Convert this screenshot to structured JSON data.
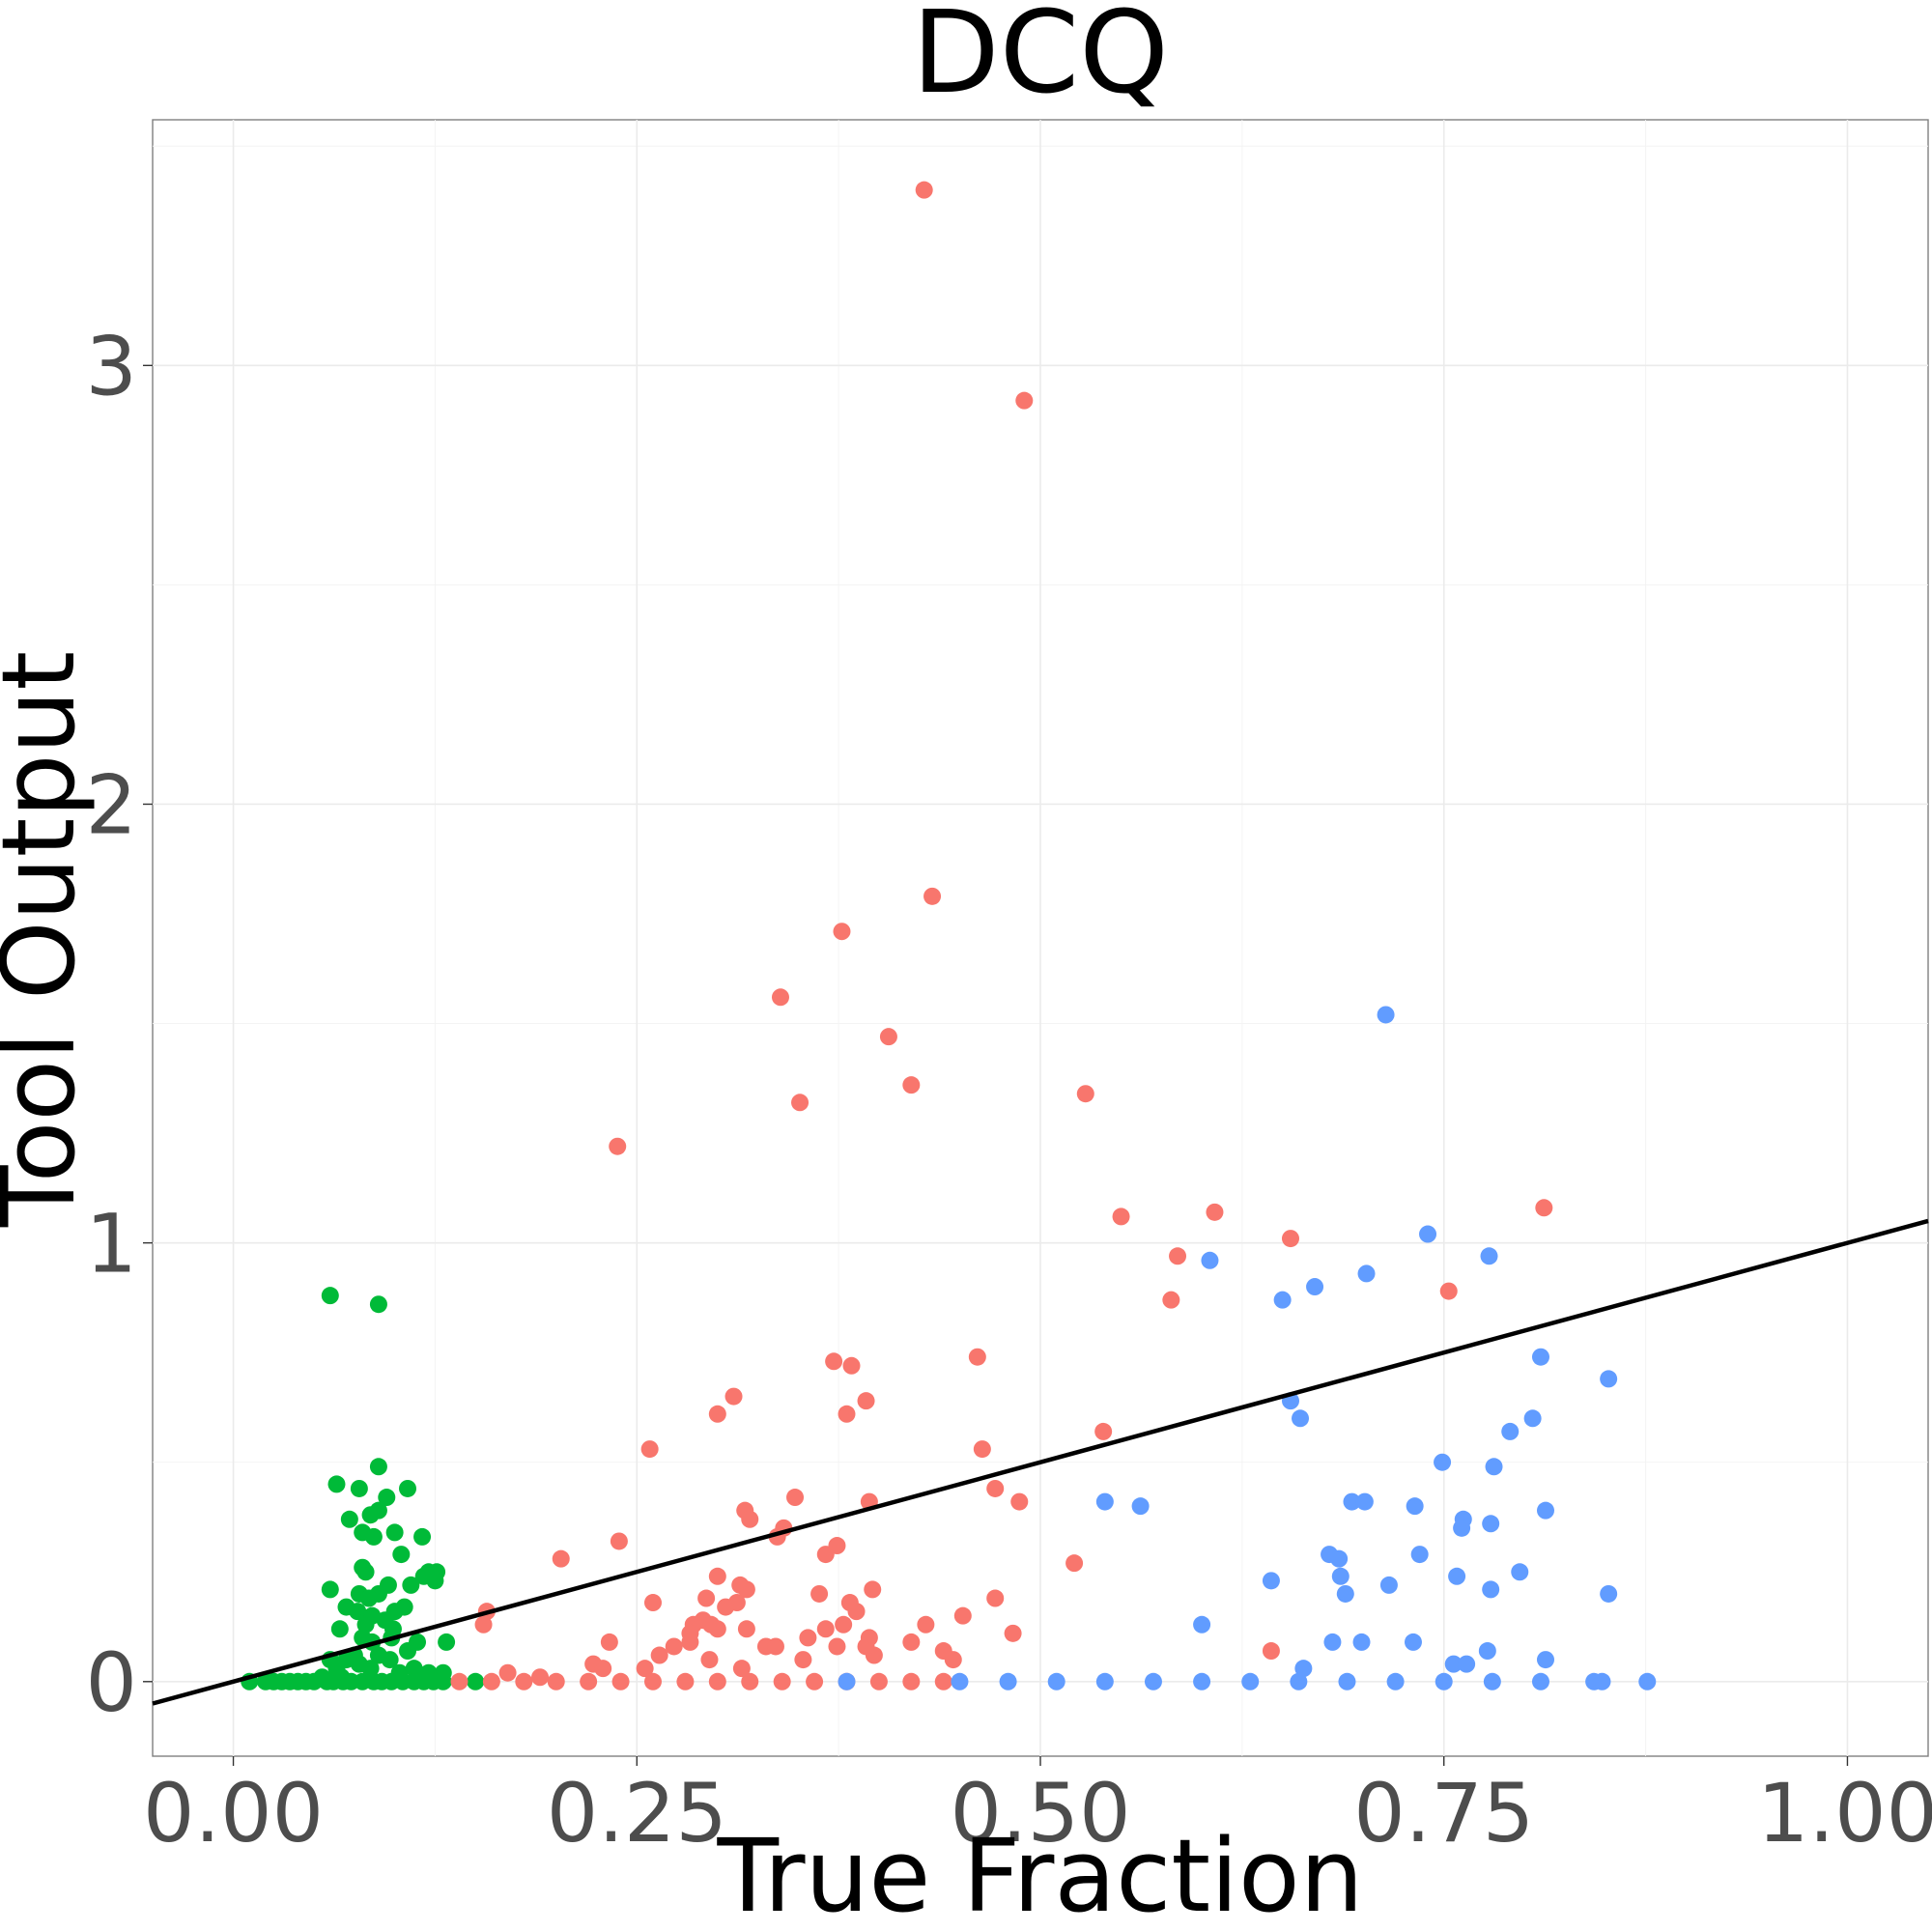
{
  "chart_data": {
    "type": "scatter",
    "title": "DCQ",
    "xlabel": "True Fraction",
    "ylabel": "Tool Output",
    "xlim": [
      -0.05,
      1.05
    ],
    "ylim": [
      -0.17,
      3.56
    ],
    "xticks": [
      0,
      0.25,
      0.5,
      0.75,
      1
    ],
    "xtick_labels": [
      "0.00",
      "0.25",
      "0.50",
      "0.75",
      "1.00"
    ],
    "yticks": [
      0,
      1,
      2,
      3
    ],
    "ytick_labels": [
      "0",
      "1",
      "2",
      "3"
    ],
    "grid": true,
    "legend": "none",
    "reference_line": {
      "type": "identity",
      "slope": 1,
      "intercept": 0,
      "color": "#000000"
    },
    "colors": {
      "green": "#00BA38",
      "red": "#F8766D",
      "blue": "#619CFF",
      "line": "#000000"
    },
    "series": [
      {
        "color": "#00BA38",
        "points": [
          [
            0.06,
            0.88
          ],
          [
            0.09,
            0.86
          ],
          [
            0.064,
            0.45
          ],
          [
            0.09,
            0.49
          ],
          [
            0.108,
            0.44
          ],
          [
            0.078,
            0.44
          ],
          [
            0.095,
            0.42
          ],
          [
            0.072,
            0.37
          ],
          [
            0.085,
            0.38
          ],
          [
            0.09,
            0.39
          ],
          [
            0.1,
            0.34
          ],
          [
            0.117,
            0.33
          ],
          [
            0.08,
            0.34
          ],
          [
            0.087,
            0.33
          ],
          [
            0.104,
            0.29
          ],
          [
            0.06,
            0.21
          ],
          [
            0.082,
            0.25
          ],
          [
            0.08,
            0.26
          ],
          [
            0.121,
            0.25
          ],
          [
            0.126,
            0.25
          ],
          [
            0.125,
            0.23
          ],
          [
            0.118,
            0.24
          ],
          [
            0.11,
            0.22
          ],
          [
            0.096,
            0.22
          ],
          [
            0.09,
            0.2
          ],
          [
            0.078,
            0.2
          ],
          [
            0.084,
            0.19
          ],
          [
            0.07,
            0.17
          ],
          [
            0.077,
            0.16
          ],
          [
            0.086,
            0.15
          ],
          [
            0.1,
            0.16
          ],
          [
            0.106,
            0.17
          ],
          [
            0.094,
            0.14
          ],
          [
            0.082,
            0.13
          ],
          [
            0.066,
            0.12
          ],
          [
            0.099,
            0.12
          ],
          [
            0.098,
            0.1
          ],
          [
            0.08,
            0.1
          ],
          [
            0.114,
            0.09
          ],
          [
            0.132,
            0.09
          ],
          [
            0.086,
            0.09
          ],
          [
            0.075,
            0.06
          ],
          [
            0.06,
            0.05
          ],
          [
            0.09,
            0.06
          ],
          [
            0.108,
            0.07
          ],
          [
            0.07,
            0.05
          ],
          [
            0.064,
            0.03
          ],
          [
            0.097,
            0.05
          ],
          [
            0.085,
            0.03
          ],
          [
            0.078,
            0.04
          ],
          [
            0.112,
            0.03
          ],
          [
            0.121,
            0.02
          ],
          [
            0.13,
            0.02
          ],
          [
            0.103,
            0.02
          ],
          [
            0.055,
            0.01
          ],
          [
            0.067,
            0.01
          ],
          [
            0.073,
            0.0
          ],
          [
            0.01,
            0.0
          ],
          [
            0.02,
            0.0
          ],
          [
            0.025,
            0.0
          ],
          [
            0.03,
            0.0
          ],
          [
            0.035,
            0.0
          ],
          [
            0.04,
            0.0
          ],
          [
            0.045,
            0.0
          ],
          [
            0.05,
            0.0
          ],
          [
            0.058,
            0.0
          ],
          [
            0.062,
            0.0
          ],
          [
            0.068,
            0.0
          ],
          [
            0.08,
            0.0
          ],
          [
            0.087,
            0.0
          ],
          [
            0.092,
            0.0
          ],
          [
            0.098,
            0.0
          ],
          [
            0.105,
            0.0
          ],
          [
            0.112,
            0.0
          ],
          [
            0.118,
            0.0
          ],
          [
            0.124,
            0.0
          ],
          [
            0.13,
            0.0
          ],
          [
            0.15,
            0.0
          ]
        ]
      },
      {
        "color": "#F8766D",
        "points": [
          [
            0.428,
            3.4
          ],
          [
            0.49,
            2.92
          ],
          [
            0.433,
            1.79
          ],
          [
            0.377,
            1.71
          ],
          [
            0.339,
            1.56
          ],
          [
            0.406,
            1.47
          ],
          [
            0.42,
            1.36
          ],
          [
            0.351,
            1.32
          ],
          [
            0.528,
            1.34
          ],
          [
            0.238,
            1.22
          ],
          [
            0.55,
            1.06
          ],
          [
            0.608,
            1.07
          ],
          [
            0.812,
            1.08
          ],
          [
            0.655,
            1.01
          ],
          [
            0.585,
            0.97
          ],
          [
            0.581,
            0.87
          ],
          [
            0.753,
            0.89
          ],
          [
            0.461,
            0.74
          ],
          [
            0.372,
            0.73
          ],
          [
            0.383,
            0.72
          ],
          [
            0.31,
            0.65
          ],
          [
            0.392,
            0.64
          ],
          [
            0.3,
            0.61
          ],
          [
            0.38,
            0.61
          ],
          [
            0.539,
            0.57
          ],
          [
            0.258,
            0.53
          ],
          [
            0.464,
            0.53
          ],
          [
            0.472,
            0.44
          ],
          [
            0.348,
            0.42
          ],
          [
            0.394,
            0.41
          ],
          [
            0.487,
            0.41
          ],
          [
            0.317,
            0.39
          ],
          [
            0.32,
            0.37
          ],
          [
            0.341,
            0.35
          ],
          [
            0.337,
            0.33
          ],
          [
            0.374,
            0.31
          ],
          [
            0.239,
            0.32
          ],
          [
            0.367,
            0.29
          ],
          [
            0.203,
            0.28
          ],
          [
            0.521,
            0.27
          ],
          [
            0.3,
            0.24
          ],
          [
            0.314,
            0.22
          ],
          [
            0.318,
            0.21
          ],
          [
            0.396,
            0.21
          ],
          [
            0.363,
            0.2
          ],
          [
            0.293,
            0.19
          ],
          [
            0.472,
            0.19
          ],
          [
            0.26,
            0.18
          ],
          [
            0.312,
            0.18
          ],
          [
            0.305,
            0.17
          ],
          [
            0.382,
            0.18
          ],
          [
            0.386,
            0.16
          ],
          [
            0.157,
            0.16
          ],
          [
            0.155,
            0.13
          ],
          [
            0.285,
            0.13
          ],
          [
            0.291,
            0.14
          ],
          [
            0.296,
            0.13
          ],
          [
            0.3,
            0.12
          ],
          [
            0.318,
            0.12
          ],
          [
            0.367,
            0.12
          ],
          [
            0.378,
            0.13
          ],
          [
            0.429,
            0.13
          ],
          [
            0.452,
            0.15
          ],
          [
            0.483,
            0.11
          ],
          [
            0.283,
            0.11
          ],
          [
            0.356,
            0.1
          ],
          [
            0.233,
            0.09
          ],
          [
            0.283,
            0.09
          ],
          [
            0.394,
            0.1
          ],
          [
            0.42,
            0.09
          ],
          [
            0.273,
            0.08
          ],
          [
            0.33,
            0.08
          ],
          [
            0.336,
            0.08
          ],
          [
            0.374,
            0.08
          ],
          [
            0.392,
            0.08
          ],
          [
            0.44,
            0.07
          ],
          [
            0.264,
            0.06
          ],
          [
            0.295,
            0.05
          ],
          [
            0.353,
            0.05
          ],
          [
            0.397,
            0.06
          ],
          [
            0.446,
            0.05
          ],
          [
            0.643,
            0.07
          ],
          [
            0.223,
            0.04
          ],
          [
            0.229,
            0.03
          ],
          [
            0.255,
            0.03
          ],
          [
            0.315,
            0.03
          ],
          [
            0.17,
            0.02
          ],
          [
            0.19,
            0.01
          ],
          [
            0.14,
            0.0
          ],
          [
            0.16,
            0.0
          ],
          [
            0.18,
            0.0
          ],
          [
            0.2,
            0.0
          ],
          [
            0.22,
            0.0
          ],
          [
            0.24,
            0.0
          ],
          [
            0.26,
            0.0
          ],
          [
            0.28,
            0.0
          ],
          [
            0.3,
            0.0
          ],
          [
            0.32,
            0.0
          ],
          [
            0.34,
            0.0
          ],
          [
            0.36,
            0.0
          ],
          [
            0.38,
            0.0
          ],
          [
            0.4,
            0.0
          ],
          [
            0.42,
            0.0
          ],
          [
            0.44,
            0.0
          ]
        ]
      },
      {
        "color": "#619CFF",
        "points": [
          [
            0.714,
            1.52
          ],
          [
            0.74,
            1.02
          ],
          [
            0.778,
            0.97
          ],
          [
            0.605,
            0.96
          ],
          [
            0.702,
            0.93
          ],
          [
            0.67,
            0.9
          ],
          [
            0.65,
            0.87
          ],
          [
            0.81,
            0.74
          ],
          [
            0.852,
            0.69
          ],
          [
            0.655,
            0.64
          ],
          [
            0.661,
            0.6
          ],
          [
            0.805,
            0.6
          ],
          [
            0.791,
            0.57
          ],
          [
            0.749,
            0.5
          ],
          [
            0.781,
            0.49
          ],
          [
            0.54,
            0.41
          ],
          [
            0.562,
            0.4
          ],
          [
            0.693,
            0.41
          ],
          [
            0.701,
            0.41
          ],
          [
            0.732,
            0.4
          ],
          [
            0.813,
            0.39
          ],
          [
            0.762,
            0.37
          ],
          [
            0.761,
            0.35
          ],
          [
            0.779,
            0.36
          ],
          [
            0.735,
            0.29
          ],
          [
            0.679,
            0.29
          ],
          [
            0.685,
            0.28
          ],
          [
            0.643,
            0.23
          ],
          [
            0.686,
            0.24
          ],
          [
            0.758,
            0.24
          ],
          [
            0.797,
            0.25
          ],
          [
            0.716,
            0.22
          ],
          [
            0.689,
            0.2
          ],
          [
            0.779,
            0.21
          ],
          [
            0.852,
            0.2
          ],
          [
            0.6,
            0.13
          ],
          [
            0.681,
            0.09
          ],
          [
            0.699,
            0.09
          ],
          [
            0.731,
            0.09
          ],
          [
            0.777,
            0.07
          ],
          [
            0.813,
            0.05
          ],
          [
            0.663,
            0.03
          ],
          [
            0.756,
            0.04
          ],
          [
            0.764,
            0.04
          ],
          [
            0.38,
            0.0
          ],
          [
            0.45,
            0.0
          ],
          [
            0.48,
            0.0
          ],
          [
            0.51,
            0.0
          ],
          [
            0.54,
            0.0
          ],
          [
            0.57,
            0.0
          ],
          [
            0.6,
            0.0
          ],
          [
            0.63,
            0.0
          ],
          [
            0.66,
            0.0
          ],
          [
            0.69,
            0.0
          ],
          [
            0.72,
            0.0
          ],
          [
            0.75,
            0.0
          ],
          [
            0.78,
            0.0
          ],
          [
            0.81,
            0.0
          ],
          [
            0.843,
            0.0
          ],
          [
            0.848,
            0.0
          ],
          [
            0.876,
            0.0
          ]
        ]
      }
    ]
  }
}
